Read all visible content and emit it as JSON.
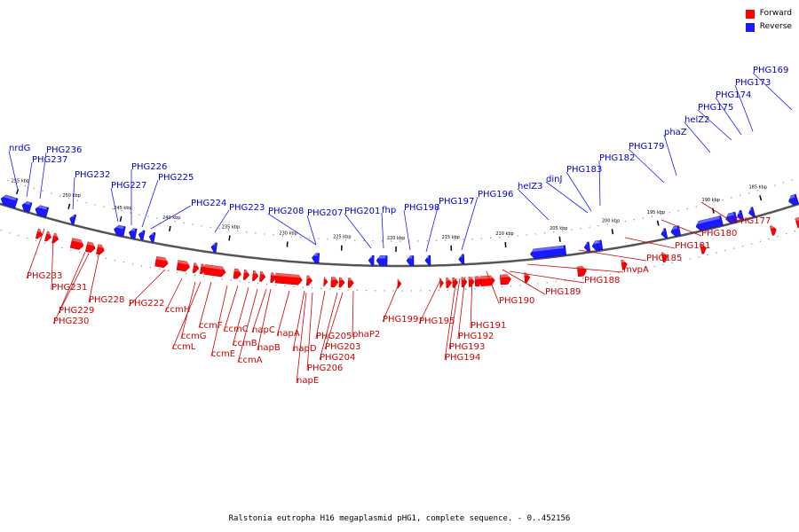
{
  "legend": [
    {
      "label": "Forward",
      "color": "#ff0000"
    },
    {
      "label": "Reverse",
      "color": "#1a1aff"
    }
  ],
  "caption": "Ralstonia eutropha H16 megaplasmid pHG1, complete sequence. - 0..452156",
  "ticks": [
    {
      "label": "255 kbp"
    },
    {
      "label": "250 kbp"
    },
    {
      "label": "245 kbp"
    },
    {
      "label": "240 kbp"
    },
    {
      "label": "235 kbp"
    },
    {
      "label": "230 kbp"
    },
    {
      "label": "225 kbp"
    },
    {
      "label": "220 kbp"
    },
    {
      "label": "215 kbp"
    },
    {
      "label": "210 kbp"
    },
    {
      "label": "205 kbp"
    },
    {
      "label": "200 kbp"
    },
    {
      "label": "195 kbp"
    },
    {
      "label": "190 kbp"
    },
    {
      "label": "185 kbp"
    }
  ],
  "reverse_genes": [
    {
      "label": "nrdG"
    },
    {
      "label": "PHG237"
    },
    {
      "label": "PHG236"
    },
    {
      "label": "PHG232"
    },
    {
      "label": "PHG227"
    },
    {
      "label": "PHG226"
    },
    {
      "label": "PHG225"
    },
    {
      "label": "PHG224"
    },
    {
      "label": "PHG223"
    },
    {
      "label": "PHG208"
    },
    {
      "label": "PHG207"
    },
    {
      "label": "PHG201"
    },
    {
      "label": "fhp"
    },
    {
      "label": "PHG198"
    },
    {
      "label": "PHG197"
    },
    {
      "label": "PHG196"
    },
    {
      "label": "helZ3"
    },
    {
      "label": "dinJ"
    },
    {
      "label": "PHG183"
    },
    {
      "label": "PHG182"
    },
    {
      "label": "PHG179"
    },
    {
      "label": "phaZ"
    },
    {
      "label": "helZ2"
    },
    {
      "label": "PHG175"
    },
    {
      "label": "PHG174"
    },
    {
      "label": "PHG173"
    },
    {
      "label": "PHG169"
    }
  ],
  "forward_genes": [
    {
      "label": "PHG233"
    },
    {
      "label": "PHG231"
    },
    {
      "label": "PHG229"
    },
    {
      "label": "PHG230"
    },
    {
      "label": "PHG228"
    },
    {
      "label": "PHG222"
    },
    {
      "label": "ccmH"
    },
    {
      "label": "ccmG"
    },
    {
      "label": "ccmL"
    },
    {
      "label": "ccmF"
    },
    {
      "label": "ccmE"
    },
    {
      "label": "ccmC"
    },
    {
      "label": "ccmB"
    },
    {
      "label": "ccmA"
    },
    {
      "label": "napC"
    },
    {
      "label": "napB"
    },
    {
      "label": "napA"
    },
    {
      "label": "napD"
    },
    {
      "label": "napE"
    },
    {
      "label": "PHG206"
    },
    {
      "label": "PHG205"
    },
    {
      "label": "PHG204"
    },
    {
      "label": "PHG203"
    },
    {
      "label": "phaP2"
    },
    {
      "label": "PHG199"
    },
    {
      "label": "PHG195"
    },
    {
      "label": "PHG194"
    },
    {
      "label": "PHG193"
    },
    {
      "label": "PHG192"
    },
    {
      "label": "PHG191"
    },
    {
      "label": "PHG190"
    },
    {
      "label": "PHG189"
    },
    {
      "label": "PHG188"
    },
    {
      "label": "mvpA"
    },
    {
      "label": "PHG185"
    },
    {
      "label": "PHG181"
    },
    {
      "label": "PHG180"
    },
    {
      "label": "PHG177"
    }
  ]
}
